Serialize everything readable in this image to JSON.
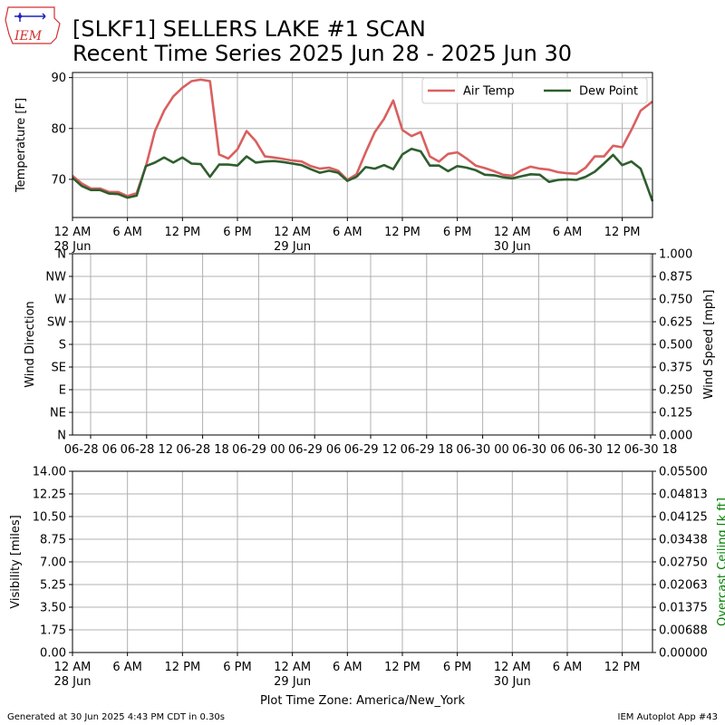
{
  "header": {
    "logo_text": "IEM",
    "title": "[SLKF1] SELLERS LAKE #1 SCAN",
    "subtitle": "Recent Time Series 2025 Jun 28 - 2025 Jun 30"
  },
  "footer": {
    "generated": "Generated at 30 Jun 2025 4:43 PM CDT in 0.30s",
    "app": "IEM Autoplot App #43",
    "timezone": "Plot Time Zone: America/New_York"
  },
  "colors": {
    "air_temp": "#d9605f",
    "dew_point": "#2e5e2e",
    "ceiling": "#008000"
  },
  "chart_data": [
    {
      "type": "line",
      "ylabel": "Temperature [F]",
      "ylim": [
        62.5,
        91
      ],
      "xlim_hours": [
        0,
        63.3
      ],
      "yticks": [
        70,
        80,
        90
      ],
      "xticks": [
        {
          "h": 0,
          "label": "12 AM",
          "sub": "28 Jun"
        },
        {
          "h": 6,
          "label": "6 AM",
          "sub": ""
        },
        {
          "h": 12,
          "label": "12 PM",
          "sub": ""
        },
        {
          "h": 18,
          "label": "6 PM",
          "sub": ""
        },
        {
          "h": 24,
          "label": "12 AM",
          "sub": "29 Jun"
        },
        {
          "h": 30,
          "label": "6 AM",
          "sub": ""
        },
        {
          "h": 36,
          "label": "12 PM",
          "sub": ""
        },
        {
          "h": 42,
          "label": "6 PM",
          "sub": ""
        },
        {
          "h": 48,
          "label": "12 AM",
          "sub": "30 Jun"
        },
        {
          "h": 54,
          "label": "6 AM",
          "sub": ""
        },
        {
          "h": 60,
          "label": "12 PM",
          "sub": ""
        }
      ],
      "grid": true,
      "legend_position": "top-right",
      "series": [
        {
          "name": "Air Temp",
          "x": [
            0,
            1,
            2,
            3,
            4,
            5,
            6,
            7,
            8,
            9,
            10,
            11,
            12,
            13,
            14,
            15,
            16,
            17,
            18,
            19,
            20,
            21,
            22,
            23,
            24,
            25,
            26,
            27,
            28,
            29,
            30,
            31,
            32,
            33,
            34,
            35,
            36,
            37,
            38,
            39,
            40,
            41,
            42,
            43,
            44,
            45,
            46,
            47,
            48,
            49,
            50,
            51,
            52,
            53,
            54,
            55,
            56,
            57,
            58,
            59,
            60,
            61,
            62,
            63.3
          ],
          "values": [
            70.7,
            69.2,
            68.2,
            68.2,
            67.5,
            67.5,
            66.7,
            67.3,
            72.5,
            79.5,
            83.5,
            86.3,
            88.0,
            89.3,
            89.6,
            89.3,
            74.9,
            74.1,
            75.9,
            79.5,
            77.5,
            74.5,
            74.3,
            74.0,
            73.7,
            73.5,
            72.6,
            72.1,
            72.3,
            71.7,
            69.9,
            71.0,
            75.3,
            79.3,
            81.9,
            85.5,
            79.7,
            78.5,
            79.3,
            74.5,
            73.5,
            75.0,
            75.3,
            74.1,
            72.7,
            72.2,
            71.6,
            70.9,
            70.7,
            71.8,
            72.5,
            72.1,
            71.9,
            71.4,
            71.2,
            71.1,
            72.3,
            74.5,
            74.5,
            76.6,
            76.3,
            79.7,
            83.5,
            85.3
          ]
        },
        {
          "name": "Dew Point",
          "x": [
            0,
            1,
            2,
            3,
            4,
            5,
            6,
            7,
            8,
            9,
            10,
            11,
            12,
            13,
            14,
            15,
            16,
            17,
            18,
            19,
            20,
            21,
            22,
            23,
            24,
            25,
            26,
            27,
            28,
            29,
            30,
            31,
            32,
            33,
            34,
            35,
            36,
            37,
            38,
            39,
            40,
            41,
            42,
            43,
            44,
            45,
            46,
            47,
            48,
            49,
            50,
            51,
            52,
            53,
            54,
            55,
            56,
            57,
            58,
            59,
            60,
            61,
            62,
            63.3
          ],
          "values": [
            70.3,
            68.7,
            67.9,
            67.9,
            67.2,
            67.1,
            66.4,
            66.8,
            72.6,
            73.3,
            74.3,
            73.3,
            74.3,
            73.1,
            73.0,
            70.5,
            72.9,
            72.9,
            72.7,
            74.5,
            73.3,
            73.5,
            73.6,
            73.4,
            73.1,
            72.8,
            72.0,
            71.3,
            71.7,
            71.3,
            69.7,
            70.5,
            72.4,
            72.1,
            72.8,
            72.0,
            74.9,
            76.0,
            75.5,
            72.7,
            72.7,
            71.6,
            72.6,
            72.3,
            71.8,
            70.9,
            70.8,
            70.4,
            70.2,
            70.6,
            71.0,
            70.9,
            69.5,
            69.9,
            70.0,
            69.9,
            70.5,
            71.5,
            73.1,
            74.8,
            72.8,
            73.5,
            72.1,
            65.7
          ]
        }
      ]
    },
    {
      "type": "line",
      "ylabel": "Wind Direction",
      "ylabel_right": "Wind Speed [mph]",
      "yticks_left": [
        "N",
        "NE",
        "E",
        "SE",
        "S",
        "SW",
        "W",
        "NW",
        "N"
      ],
      "yticks_right": [
        "0.000",
        "0.125",
        "0.250",
        "0.375",
        "0.500",
        "0.625",
        "0.750",
        "0.875",
        "1.000"
      ],
      "xticks": [
        "06-28 06",
        "06-28 12",
        "06-28 18",
        "06-29 00",
        "06-29 06",
        "06-29 12",
        "06-29 18",
        "06-30 00",
        "06-30 06",
        "06-30 12",
        "06-30 18"
      ],
      "grid": true,
      "series": []
    },
    {
      "type": "line",
      "ylabel": "Visibility [miles]",
      "ylabel_right": "Overcast Ceiling [k ft]",
      "yticks_left": [
        "0.00",
        "1.75",
        "3.50",
        "5.25",
        "7.00",
        "8.75",
        "10.50",
        "12.25",
        "14.00"
      ],
      "yticks_right": [
        "0.00000",
        "0.00688",
        "0.01375",
        "0.02063",
        "0.02750",
        "0.03438",
        "0.04125",
        "0.04813",
        "0.05500"
      ],
      "xticks": [
        {
          "label": "12 AM",
          "sub": "28 Jun"
        },
        {
          "label": "6 AM",
          "sub": ""
        },
        {
          "label": "12 PM",
          "sub": ""
        },
        {
          "label": "6 PM",
          "sub": ""
        },
        {
          "label": "12 AM",
          "sub": "29 Jun"
        },
        {
          "label": "6 AM",
          "sub": ""
        },
        {
          "label": "12 PM",
          "sub": ""
        },
        {
          "label": "6 PM",
          "sub": ""
        },
        {
          "label": "12 AM",
          "sub": "30 Jun"
        },
        {
          "label": "6 AM",
          "sub": ""
        },
        {
          "label": "12 PM",
          "sub": ""
        }
      ],
      "grid": true,
      "series": []
    }
  ]
}
